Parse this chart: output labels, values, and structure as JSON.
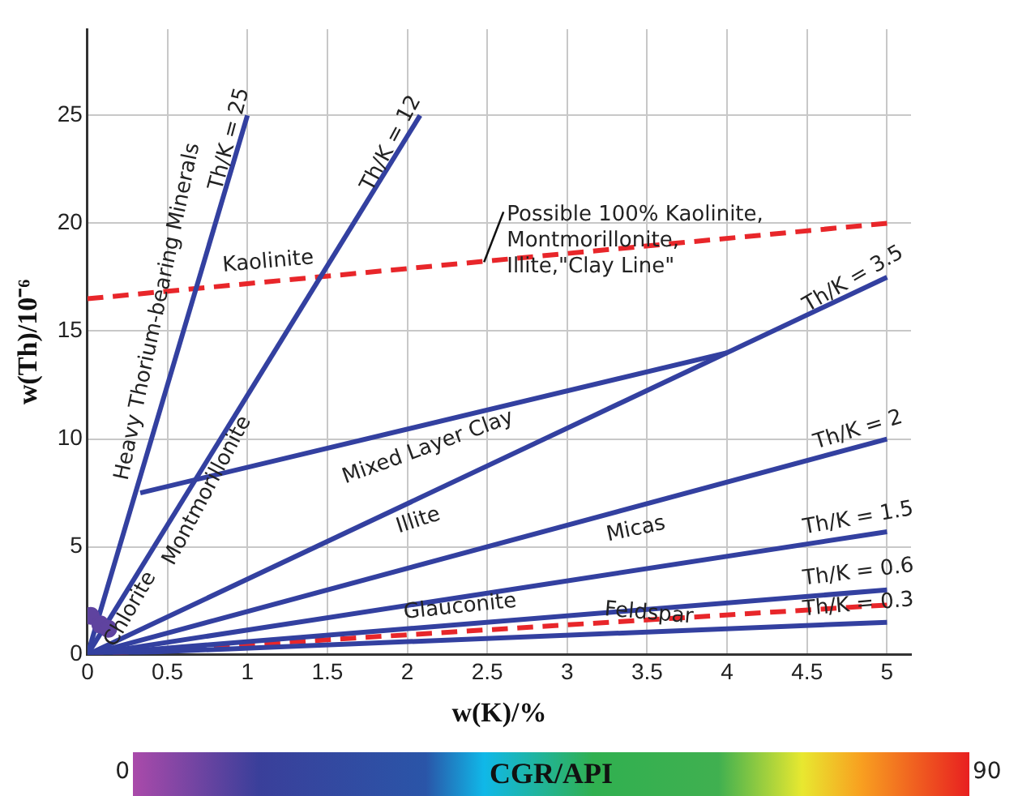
{
  "chart_data": {
    "type": "line",
    "xlabel": "w(K)/%",
    "ylabel": "w(Th)/10⁻⁶",
    "clabel": "CGR/API",
    "clim": [
      0,
      90
    ],
    "xlim": [
      0,
      5.15
    ],
    "ylim": [
      0,
      29
    ],
    "xticks": [
      0,
      0.5,
      1,
      1.5,
      2,
      2.5,
      3,
      3.5,
      4,
      4.5,
      5
    ],
    "yticks": [
      0,
      5,
      10,
      15,
      20,
      25
    ],
    "grid": true,
    "legend": false,
    "marker": "none",
    "series": [
      {
        "type": "line",
        "color": "#3340a0",
        "x": [
          0,
          1
        ],
        "values": [
          0,
          25
        ]
      },
      {
        "type": "line",
        "color": "#3340a0",
        "x": [
          0,
          2.08
        ],
        "values": [
          0,
          25
        ]
      },
      {
        "type": "line",
        "color": "#3340a0",
        "x": [
          0,
          5
        ],
        "values": [
          0,
          17.5
        ]
      },
      {
        "type": "line",
        "color": "#3340a0",
        "x": [
          0,
          5
        ],
        "values": [
          0,
          10
        ]
      },
      {
        "type": "line",
        "color": "#3340a0",
        "x": [
          0,
          5
        ],
        "values": [
          0,
          5.7
        ]
      },
      {
        "type": "line",
        "color": "#3340a0",
        "x": [
          0,
          5
        ],
        "values": [
          0,
          3
        ]
      },
      {
        "type": "line",
        "color": "#3340a0",
        "x": [
          0,
          5
        ],
        "values": [
          0,
          1.5
        ]
      },
      {
        "type": "line",
        "color": "#3340a0",
        "x": [
          0.33,
          4
        ],
        "values": [
          7.5,
          14
        ]
      },
      {
        "type": "line",
        "color": "#e8262a",
        "line_style": "dashed",
        "x": [
          0,
          5
        ],
        "values": [
          16.5,
          20
        ]
      },
      {
        "type": "line",
        "color": "#e8262a",
        "line_style": "dashed",
        "x": [
          0,
          5
        ],
        "values": [
          0,
          2.3
        ]
      },
      {
        "type": "scatter",
        "marker": "circle",
        "x": [
          0.02,
          0.08,
          0.13
        ],
        "values": [
          1.8,
          1.4,
          1.2
        ],
        "cvalues": [
          9,
          9,
          9
        ]
      }
    ],
    "cticks": [
      0,
      90
    ],
    "annotations": [
      "Th/K = 25",
      "Heavy Thorium-bearing Minerals",
      "Th/K = 12",
      "Kaolinite",
      {
        "text": "Possible 100% Kaolinite,\nMontmorillonite,\nIllite,\"Clay Line\"",
        "x": 2.48,
        "y": 18.2
      },
      "Th/K = 3.5",
      "Mixed Layer Clay",
      "Illite",
      "Montmorillonite",
      "Chlorite",
      "Th/K = 2",
      "Micas",
      "Th/K = 1.5",
      "Glauconite",
      "Th/K = 0.6",
      "Feldspar",
      "Th/K = 0.3"
    ]
  }
}
